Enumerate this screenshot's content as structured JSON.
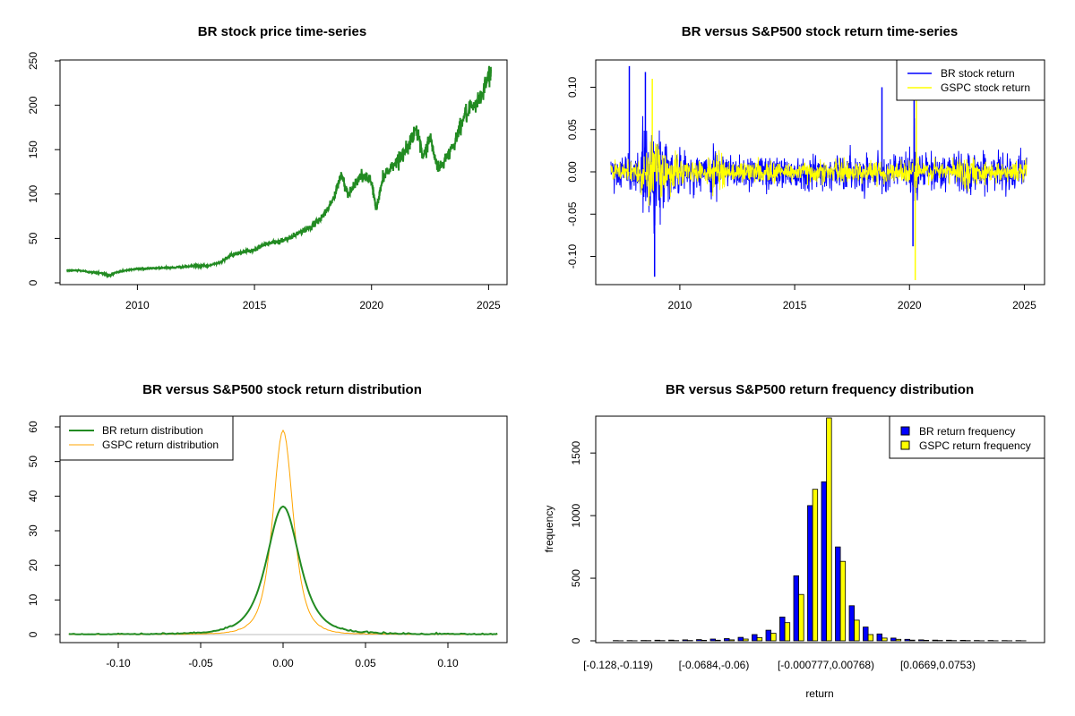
{
  "colors": {
    "green": "#228B22",
    "blue": "#0000FF",
    "yellow": "#FFFF00",
    "orange": "#FFA500",
    "grey": "#BEBEBE"
  },
  "chart_data": [
    {
      "type": "line",
      "title": "BR stock price time-series",
      "xlabel": "",
      "ylabel": "",
      "xlim": [
        2007.0,
        2025.1
      ],
      "ylim": [
        0,
        250
      ],
      "x_ticks": [
        "2010",
        "2015",
        "2020",
        "2025"
      ],
      "y_ticks": [
        "0",
        "50",
        "100",
        "150",
        "200",
        "250"
      ],
      "series": [
        {
          "color": "#228B22",
          "x": [
            2007.0,
            2007.5,
            2008.0,
            2008.5,
            2008.8,
            2009.0,
            2009.5,
            2010.0,
            2010.5,
            2011.0,
            2011.5,
            2012.0,
            2012.5,
            2013.0,
            2013.5,
            2014.0,
            2014.5,
            2015.0,
            2015.5,
            2016.0,
            2016.5,
            2017.0,
            2017.5,
            2018.0,
            2018.4,
            2018.7,
            2019.0,
            2019.5,
            2020.0,
            2020.2,
            2020.5,
            2021.0,
            2021.5,
            2021.9,
            2022.2,
            2022.5,
            2022.8,
            2023.0,
            2023.5,
            2024.0,
            2024.5,
            2025.0,
            2025.1
          ],
          "y": [
            14,
            14,
            12,
            11,
            8,
            11,
            14,
            16,
            16,
            17,
            17,
            18,
            19,
            19,
            23,
            31,
            35,
            37,
            44,
            46,
            50,
            58,
            64,
            78,
            96,
            122,
            100,
            120,
            115,
            82,
            120,
            135,
            150,
            175,
            140,
            165,
            130,
            132,
            155,
            190,
            200,
            232,
            240
          ]
        }
      ]
    },
    {
      "type": "line",
      "title": "BR versus S&P500 stock return time-series",
      "xlabel": "",
      "ylabel": "",
      "xlim": [
        2007.0,
        2025.1
      ],
      "ylim": [
        -0.128,
        0.128
      ],
      "x_ticks": [
        "2010",
        "2015",
        "2020",
        "2025"
      ],
      "y_ticks": [
        "-0.10",
        "-0.05",
        "0.00",
        "0.05",
        "0.10"
      ],
      "legend": {
        "position": "top-right",
        "entries": [
          "BR stock return",
          "GSPC stock return"
        ]
      },
      "series": [
        {
          "name": "BR stock return",
          "color": "#0000FF",
          "noise_sd": 0.018
        },
        {
          "name": "GSPC stock return",
          "color": "#FFFF00",
          "noise_sd": 0.011
        }
      ]
    },
    {
      "type": "line",
      "title": "BR versus S&P500 stock return distribution",
      "xlabel": "",
      "ylabel": "",
      "xlim": [
        -0.13,
        0.13
      ],
      "ylim": [
        0,
        60
      ],
      "x_ticks": [
        "-0.10",
        "-0.05",
        "0.00",
        "0.05",
        "0.10"
      ],
      "y_ticks": [
        "0",
        "10",
        "20",
        "30",
        "40",
        "50",
        "60"
      ],
      "legend": {
        "position": "top-left",
        "entries": [
          "BR return distribution",
          "GSPC return distribution"
        ]
      },
      "series": [
        {
          "name": "BR return distribution",
          "color": "#228B22",
          "peak": 37,
          "scale": 0.0105
        },
        {
          "name": "GSPC return distribution",
          "color": "#FFA500",
          "peak": 59,
          "scale": 0.0065
        }
      ]
    },
    {
      "type": "bar",
      "title": "BR versus S&P500 return frequency distribution",
      "xlabel": "return",
      "ylabel": "frequency",
      "ylim": [
        0,
        1780
      ],
      "y_ticks": [
        "0",
        "500",
        "1000",
        "1500"
      ],
      "x_tick_labels": [
        "[-0.128,-0.119)",
        "[-0.0684,-0.06)",
        "[-0.000777,0.00768)",
        "[0.0669,0.0753)"
      ],
      "legend": {
        "position": "top-right",
        "entries": [
          "BR return frequency",
          "GSPC return frequency"
        ]
      },
      "series": [
        {
          "name": "BR return frequency",
          "color": "#0000FF",
          "values": [
            2,
            2,
            3,
            5,
            6,
            8,
            10,
            14,
            18,
            28,
            50,
            85,
            190,
            520,
            1080,
            1270,
            750,
            280,
            110,
            55,
            22,
            12,
            8,
            6,
            5,
            4,
            3,
            3,
            2,
            2
          ]
        },
        {
          "name": "GSPC return frequency",
          "color": "#FFFF00",
          "values": [
            1,
            1,
            2,
            2,
            2,
            3,
            4,
            5,
            8,
            14,
            25,
            60,
            145,
            370,
            1210,
            1780,
            635,
            165,
            50,
            22,
            12,
            6,
            4,
            3,
            2,
            2,
            1,
            1,
            1,
            1
          ]
        }
      ]
    }
  ]
}
